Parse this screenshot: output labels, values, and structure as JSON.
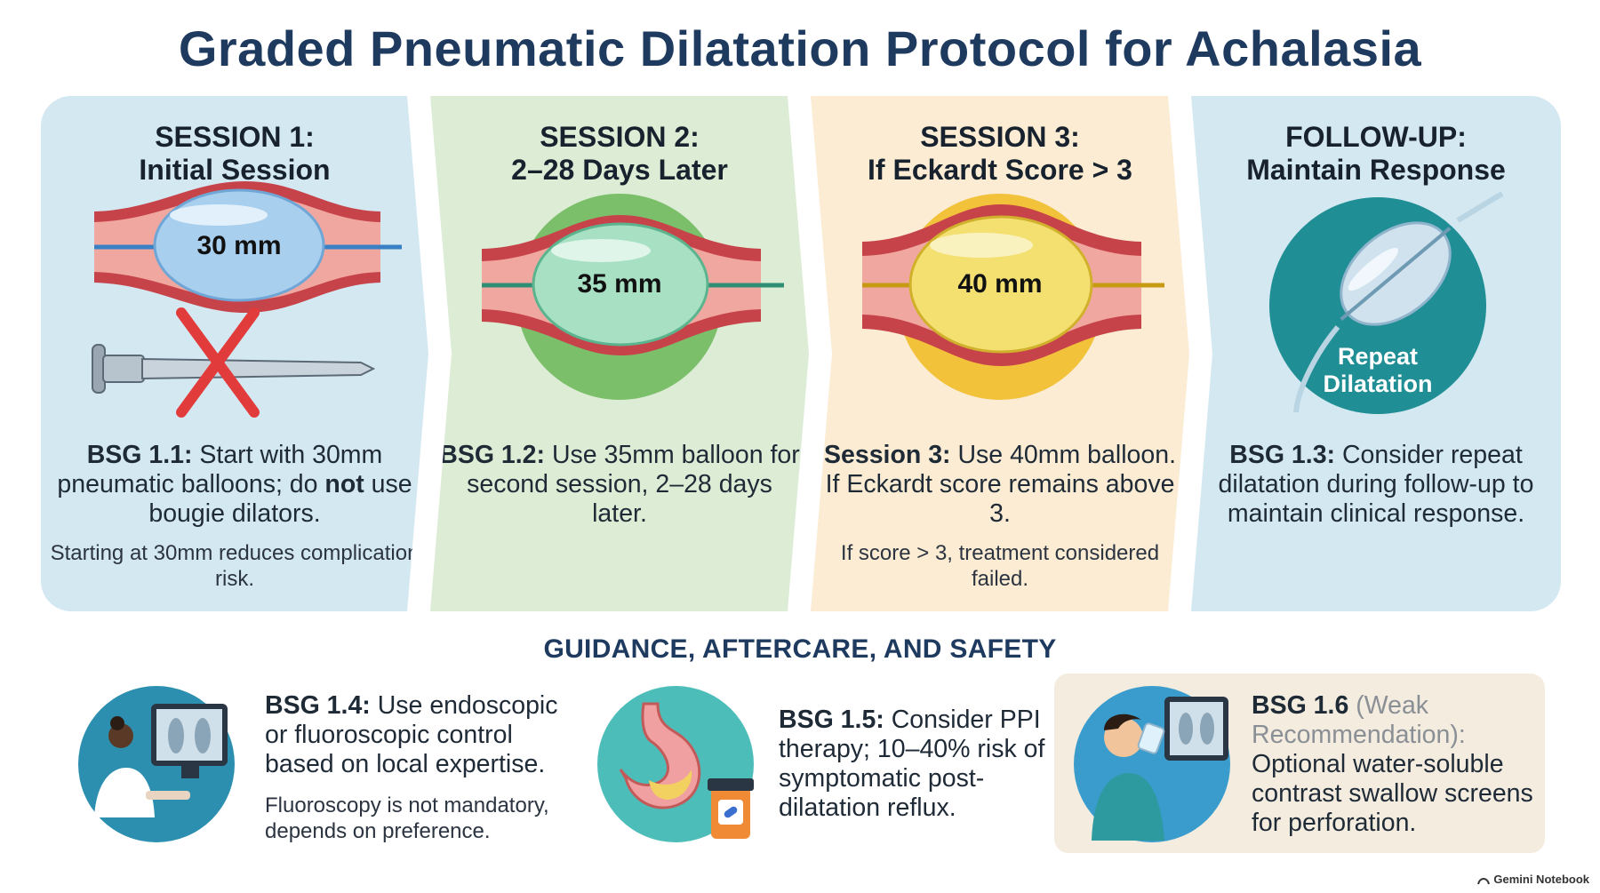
{
  "title": "Graded Pneumatic Dilatation Protocol for Achalasia",
  "steps": [
    {
      "heading_line1": "SESSION 1:",
      "heading_line2": "Initial Session",
      "balloon_label": "30 mm",
      "body_code": "BSG 1.1:",
      "body_part1": " Start with 30mm pneumatic balloons; do ",
      "body_emph": "not",
      "body_part2": " use bougie dilators.",
      "note": "Starting at 30mm reduces complication risk.",
      "colors": {
        "panel": "#d4e8f2",
        "balloon": "#a9cfee"
      }
    },
    {
      "heading_line1": "SESSION 2:",
      "heading_line2": "2–28 Days Later",
      "balloon_label": "35 mm",
      "body_code": "BSG 1.2:",
      "body_text": " Use 35mm balloon for second session, 2–28 days later.",
      "colors": {
        "panel": "#dcecd5",
        "circle": "#7cbf6a",
        "balloon": "#a7e0c3"
      }
    },
    {
      "heading_line1": "SESSION 3:",
      "heading_line2": "If Eckardt Score > 3",
      "balloon_label": "40 mm",
      "body_code": "Session 3:",
      "body_text": " Use 40mm balloon. If Eckardt score remains above 3.",
      "note": "If score > 3, treatment considered failed.",
      "colors": {
        "panel": "#fbecd3",
        "circle": "#f2c23a",
        "balloon": "#f3e070"
      }
    },
    {
      "heading_line1": "FOLLOW-UP:",
      "heading_line2": "Maintain Response",
      "badge_line1": "Repeat",
      "badge_line2": "Dilatation",
      "body_code": "BSG 1.3:",
      "body_text": " Consider repeat dilatation during follow-up to maintain clinical response.",
      "colors": {
        "panel": "#d4e8f2",
        "circle": "#1f8f95"
      }
    }
  ],
  "guidance": {
    "heading": "GUIDANCE, AFTERCARE, AND SAFETY",
    "items": [
      {
        "icon": "clinician-monitor-icon",
        "code": "BSG 1.4:",
        "text": " Use endoscopic or fluoroscopic control based on local expertise.",
        "note": "Fluoroscopy is not mandatory, depends on preference."
      },
      {
        "icon": "stomach-ppi-icon",
        "code": "BSG 1.5:",
        "text": " Consider PPI therapy; 10–40% risk of symptomatic post-dilatation reflux."
      },
      {
        "icon": "contrast-swallow-icon",
        "code": "BSG 1.6",
        "qualifier": " (Weak Recommendation):",
        "text": " Optional water-soluble contrast swallow screens for perforation."
      }
    ]
  },
  "brand": "Gemini Notebook"
}
